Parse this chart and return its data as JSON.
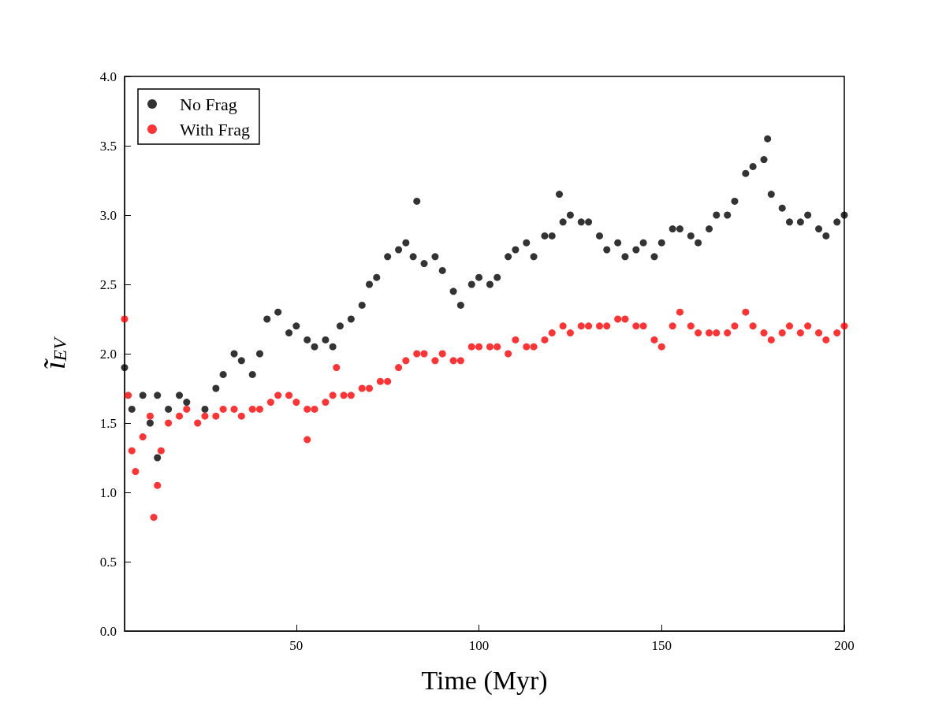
{
  "chart_data": {
    "type": "scatter",
    "xlabel": "Time (Myr)",
    "ylabel": "ĩ$_{EV}$",
    "xlim": [
      3,
      200
    ],
    "xticks": [
      50,
      100,
      150,
      200
    ],
    "ylim": [
      0,
      4
    ],
    "yticks": [
      {
        "value": 0,
        "label": "0.0"
      },
      0.5,
      {
        "value": 1,
        "label": "1.0"
      },
      1.5,
      {
        "value": 2,
        "label": "2.0"
      },
      2.5,
      {
        "value": 3,
        "label": "3.0"
      },
      3.5,
      {
        "value": 4,
        "label": "4.0"
      }
    ],
    "grid": false,
    "legend": "top left",
    "marker": "circle",
    "series": [
      {
        "name": "No Frag",
        "color": "#000000",
        "x": [
          3,
          5,
          8,
          10,
          12,
          12,
          15,
          18,
          20,
          25,
          28,
          30,
          33,
          35,
          38,
          40,
          42,
          45,
          48,
          50,
          53,
          55,
          58,
          60,
          62,
          65,
          68,
          70,
          72,
          75,
          78,
          80,
          82,
          83,
          85,
          88,
          90,
          93,
          95,
          98,
          100,
          103,
          105,
          108,
          110,
          113,
          115,
          118,
          120,
          122,
          123,
          125,
          128,
          130,
          133,
          135,
          138,
          140,
          143,
          145,
          148,
          150,
          153,
          155,
          158,
          160,
          163,
          165,
          168,
          170,
          173,
          175,
          178,
          179,
          180,
          183,
          185,
          188,
          190,
          193,
          195,
          198,
          200
        ],
        "values": [
          1.9,
          1.6,
          1.7,
          1.5,
          1.7,
          1.25,
          1.6,
          1.7,
          1.65,
          1.6,
          1.75,
          1.85,
          2.0,
          1.95,
          1.85,
          2.0,
          2.25,
          2.3,
          2.15,
          2.2,
          2.1,
          2.05,
          2.1,
          2.05,
          2.2,
          2.25,
          2.35,
          2.5,
          2.55,
          2.7,
          2.75,
          2.8,
          2.7,
          3.1,
          2.65,
          2.7,
          2.6,
          2.45,
          2.35,
          2.5,
          2.55,
          2.5,
          2.55,
          2.7,
          2.75,
          2.8,
          2.7,
          2.85,
          2.85,
          3.15,
          2.95,
          3.0,
          2.95,
          2.95,
          2.85,
          2.75,
          2.8,
          2.7,
          2.75,
          2.8,
          2.7,
          2.8,
          2.9,
          2.9,
          2.85,
          2.8,
          2.9,
          3.0,
          3.0,
          3.1,
          3.3,
          3.35,
          3.4,
          3.55,
          3.15,
          3.05,
          2.95,
          2.95,
          3.0,
          2.9,
          2.85,
          2.95,
          3.0
        ]
      },
      {
        "name": "With Frag",
        "color": "#ff0000",
        "x": [
          3,
          4,
          5,
          6,
          8,
          10,
          11,
          12,
          13,
          15,
          18,
          20,
          23,
          25,
          28,
          30,
          33,
          35,
          38,
          40,
          43,
          45,
          48,
          50,
          53,
          53,
          55,
          58,
          60,
          61,
          63,
          65,
          68,
          70,
          73,
          75,
          78,
          80,
          83,
          85,
          88,
          90,
          93,
          95,
          98,
          100,
          103,
          105,
          108,
          110,
          113,
          115,
          118,
          120,
          123,
          125,
          128,
          130,
          133,
          135,
          138,
          140,
          143,
          145,
          148,
          150,
          153,
          155,
          158,
          160,
          163,
          165,
          168,
          170,
          173,
          175,
          178,
          180,
          183,
          185,
          188,
          190,
          193,
          195,
          198,
          200
        ],
        "values": [
          2.25,
          1.7,
          1.3,
          1.15,
          1.4,
          1.55,
          0.82,
          1.05,
          1.3,
          1.5,
          1.55,
          1.6,
          1.5,
          1.55,
          1.55,
          1.6,
          1.6,
          1.55,
          1.6,
          1.6,
          1.65,
          1.7,
          1.7,
          1.65,
          1.6,
          1.38,
          1.6,
          1.65,
          1.7,
          1.9,
          1.7,
          1.7,
          1.75,
          1.75,
          1.8,
          1.8,
          1.9,
          1.95,
          2.0,
          2.0,
          1.95,
          2.0,
          1.95,
          1.95,
          2.05,
          2.05,
          2.05,
          2.05,
          2.0,
          2.1,
          2.05,
          2.05,
          2.1,
          2.15,
          2.2,
          2.15,
          2.2,
          2.2,
          2.2,
          2.2,
          2.25,
          2.25,
          2.2,
          2.2,
          2.1,
          2.05,
          2.2,
          2.3,
          2.2,
          2.15,
          2.15,
          2.15,
          2.15,
          2.2,
          2.3,
          2.2,
          2.15,
          2.1,
          2.15,
          2.2,
          2.15,
          2.2,
          2.15,
          2.1,
          2.15,
          2.2
        ]
      }
    ]
  }
}
